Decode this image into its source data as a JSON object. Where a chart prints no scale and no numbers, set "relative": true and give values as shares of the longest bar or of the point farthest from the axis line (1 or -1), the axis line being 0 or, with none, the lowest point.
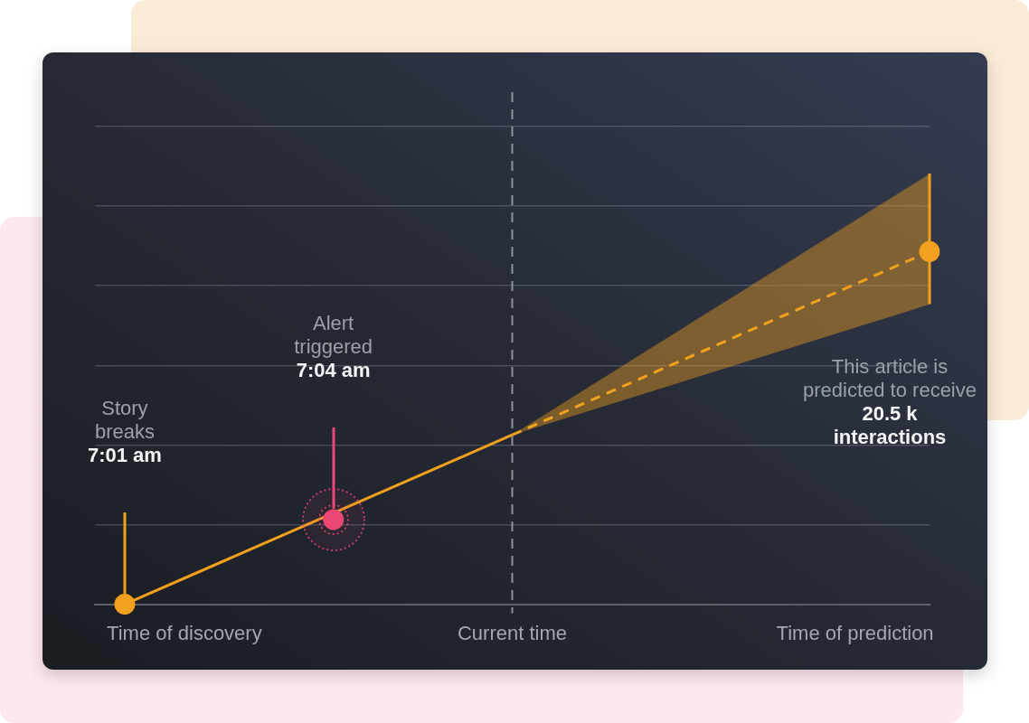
{
  "chart_data": {
    "type": "line",
    "relative": true,
    "grid": "y",
    "categories": [
      null,
      null,
      null,
      null,
      null,
      null,
      "Time of discovery",
      null,
      null,
      null,
      null,
      null,
      null,
      null,
      null,
      null,
      null,
      null,
      null,
      null,
      null,
      null,
      null,
      null,
      null,
      null,
      null,
      null,
      "Current time",
      null,
      null,
      null,
      null,
      null,
      null,
      null,
      null,
      null,
      null,
      null,
      null,
      null,
      null,
      null,
      null,
      null,
      null,
      null,
      null,
      null,
      null,
      "Time of prediction",
      null,
      null,
      null,
      null,
      null
    ],
    "series": [
      {
        "color": "#f2a11f",
        "values": [
          null,
          null,
          0,
          null,
          null,
          null,
          null,
          null,
          null,
          null,
          null,
          null,
          null,
          null,
          null,
          null,
          null,
          null,
          null,
          null,
          null,
          null,
          null,
          null,
          null,
          null,
          null,
          null,
          0.48,
          null,
          null,
          null,
          null,
          null,
          null,
          null,
          null,
          null,
          null,
          null,
          null,
          null,
          null,
          null,
          null,
          null,
          null,
          null,
          null,
          null,
          null,
          null,
          null,
          null,
          null,
          null,
          null
        ]
      },
      {
        "color": "#f2a11f",
        "line_style": "dashed",
        "values": [
          null,
          null,
          null,
          null,
          null,
          null,
          null,
          null,
          null,
          null,
          null,
          null,
          null,
          null,
          null,
          null,
          null,
          null,
          null,
          null,
          null,
          null,
          null,
          null,
          null,
          null,
          null,
          null,
          0.48,
          null,
          null,
          null,
          null,
          null,
          null,
          null,
          null,
          null,
          null,
          null,
          null,
          null,
          null,
          null,
          null,
          null,
          null,
          null,
          null,
          null,
          null,
          null,
          null,
          null,
          null,
          null,
          1
        ],
        "lower": [
          null,
          null,
          null,
          null,
          null,
          null,
          null,
          null,
          null,
          null,
          null,
          null,
          null,
          null,
          null,
          null,
          null,
          null,
          null,
          null,
          null,
          null,
          null,
          null,
          null,
          null,
          null,
          null,
          0.48,
          null,
          null,
          null,
          null,
          null,
          null,
          null,
          null,
          null,
          null,
          null,
          null,
          null,
          null,
          null,
          null,
          null,
          null,
          null,
          null,
          null,
          null,
          null,
          null,
          null,
          null,
          null,
          0.85
        ],
        "upper": [
          null,
          null,
          null,
          null,
          null,
          null,
          null,
          null,
          null,
          null,
          null,
          null,
          null,
          null,
          null,
          null,
          null,
          null,
          null,
          null,
          null,
          null,
          null,
          null,
          null,
          null,
          null,
          null,
          0.48,
          null,
          null,
          null,
          null,
          null,
          null,
          null,
          null,
          null,
          null,
          null,
          null,
          null,
          null,
          null,
          null,
          null,
          null,
          null,
          null,
          null,
          null,
          null,
          null,
          null,
          null,
          null,
          1.22
        ]
      },
      {
        "type": "scatter",
        "marker": "circle",
        "color": "#f2a11f",
        "values": [
          null,
          null,
          0,
          null,
          null,
          null,
          null,
          null,
          null,
          null,
          null,
          null,
          null,
          null,
          null,
          null,
          null,
          null,
          null,
          null,
          null,
          null,
          null,
          null,
          null,
          null,
          null,
          null,
          null,
          null,
          null,
          null,
          null,
          null,
          null,
          null,
          null,
          null,
          null,
          null,
          null,
          null,
          null,
          null,
          null,
          null,
          null,
          null,
          null,
          null,
          null,
          null,
          null,
          null,
          null,
          null,
          1
        ]
      },
      {
        "type": "scatter",
        "marker": "circle",
        "color": "#ec4677",
        "values": [
          null,
          null,
          null,
          null,
          null,
          null,
          null,
          null,
          null,
          null,
          null,
          null,
          null,
          null,
          null,
          null,
          0.24,
          null,
          null,
          null,
          null,
          null,
          null,
          null,
          null,
          null,
          null,
          null,
          null,
          null,
          null,
          null,
          null,
          null,
          null,
          null,
          null,
          null,
          null,
          null,
          null,
          null,
          null,
          null,
          null,
          null,
          null,
          null,
          null,
          null,
          null,
          null,
          null,
          null,
          null,
          null,
          null
        ]
      }
    ],
    "ref_lines": [
      {
        "axis": "x",
        "value": "Current time",
        "color": "#8c919b",
        "line_style": "dashed"
      }
    ],
    "annotations": [
      "Story\nbreaks",
      "7:01 am",
      "Alert\ntriggered",
      "7:04 am",
      "This article is\npredicted to receive",
      "20.5 k\ninteractions"
    ]
  }
}
